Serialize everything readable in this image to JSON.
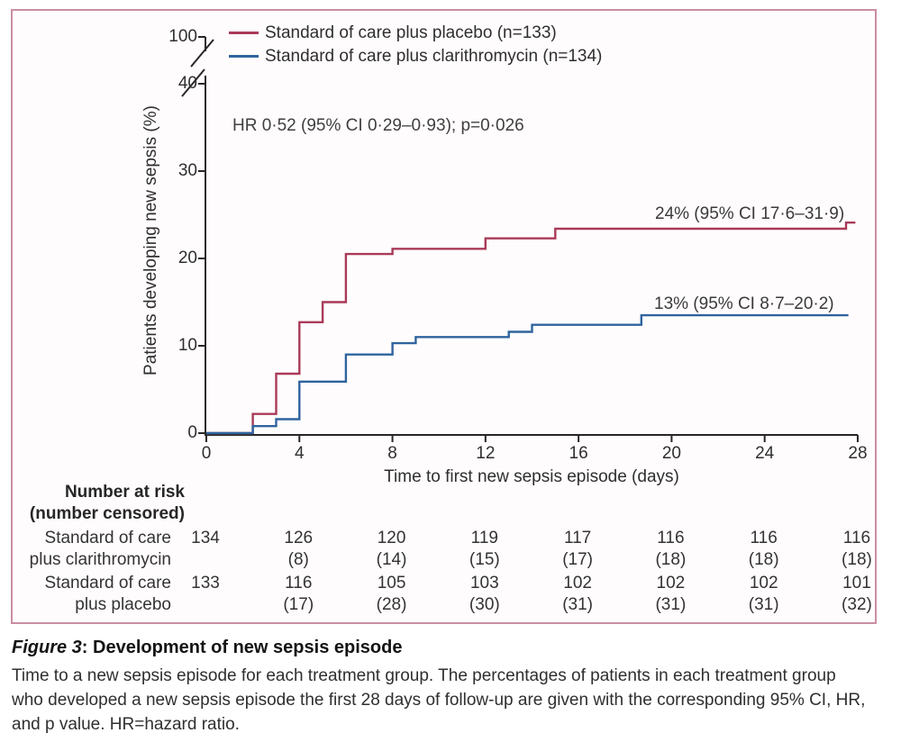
{
  "figure": {
    "legend": [
      {
        "label": "Standard of care plus placebo (n=133)",
        "color": "#a93a58"
      },
      {
        "label": "Standard of care plus clarithromycin (n=134)",
        "color": "#2f649e"
      }
    ],
    "hr_annotation": "HR 0·52 (95% CI 0·29–0·93); p=0·026"
  },
  "chart_data": {
    "type": "line",
    "subtype": "kaplan-meier-cumulative-incidence-step",
    "title": "",
    "xlabel": "Time to first new sepsis episode (days)",
    "ylabel": "Patients developing new sepsis (%)",
    "xlim": [
      0,
      28
    ],
    "ylim": [
      0,
      40
    ],
    "y_axis_break_top_value": 100,
    "x_ticks": [
      0,
      4,
      8,
      12,
      16,
      20,
      24,
      28
    ],
    "y_ticks": [
      0,
      10,
      20,
      30,
      40,
      100
    ],
    "grid": false,
    "legend_position": "top-left",
    "series": [
      {
        "name": "Standard of care plus placebo (n=133)",
        "color": "#a93a58",
        "final_estimate": 24,
        "final_label": "24% (95% CI 17·6–31·9)",
        "points": [
          [
            0,
            0
          ],
          [
            2,
            0
          ],
          [
            2,
            2.2
          ],
          [
            3,
            2.2
          ],
          [
            3,
            6.8
          ],
          [
            4,
            6.8
          ],
          [
            4,
            12.7
          ],
          [
            5,
            12.7
          ],
          [
            5,
            15
          ],
          [
            6,
            15
          ],
          [
            6,
            20.5
          ],
          [
            8,
            20.5
          ],
          [
            8,
            21.1
          ],
          [
            12,
            21.1
          ],
          [
            12,
            22.3
          ],
          [
            15,
            22.3
          ],
          [
            15,
            23.4
          ],
          [
            27.5,
            23.4
          ],
          [
            27.5,
            24.1
          ],
          [
            27.9,
            24.1
          ]
        ]
      },
      {
        "name": "Standard of care plus clarithromycin (n=134)",
        "color": "#2f649e",
        "final_estimate": 13,
        "final_label": "13% (95% CI 8·7–20·2)",
        "points": [
          [
            0,
            0
          ],
          [
            2,
            0
          ],
          [
            2,
            0.8
          ],
          [
            3,
            0.8
          ],
          [
            3,
            1.6
          ],
          [
            4,
            1.6
          ],
          [
            4,
            5.9
          ],
          [
            6,
            5.9
          ],
          [
            6,
            9
          ],
          [
            8,
            9
          ],
          [
            8,
            10.3
          ],
          [
            9,
            10.3
          ],
          [
            9,
            11
          ],
          [
            13,
            11
          ],
          [
            13,
            11.6
          ],
          [
            14,
            11.6
          ],
          [
            14,
            12.4
          ],
          [
            18.7,
            12.4
          ],
          [
            18.7,
            13.5
          ],
          [
            27.6,
            13.5
          ]
        ]
      }
    ]
  },
  "risk_table": {
    "header_line1": "Number at risk",
    "header_line2": "(number censored)",
    "time_points": [
      0,
      4,
      8,
      12,
      16,
      20,
      24,
      28
    ],
    "rows": [
      {
        "label_line1": "Standard of care",
        "label_line2": "plus clarithromycin",
        "at_risk": [
          "134",
          "126",
          "120",
          "119",
          "117",
          "116",
          "116",
          "116"
        ],
        "censored": [
          "",
          "(8)",
          "(14)",
          "(15)",
          "(17)",
          "(18)",
          "(18)",
          "(18)"
        ]
      },
      {
        "label_line1": "Standard of care",
        "label_line2": "plus placebo",
        "at_risk": [
          "133",
          "116",
          "105",
          "103",
          "102",
          "102",
          "102",
          "101"
        ],
        "censored": [
          "",
          "(17)",
          "(28)",
          "(30)",
          "(31)",
          "(31)",
          "(31)",
          "(32)"
        ]
      }
    ]
  },
  "caption": {
    "title_prefix": "Figure 3",
    "title_separator": ": ",
    "title_rest": "Development of new sepsis episode",
    "body": "Time to a new sepsis episode for each treatment group. The percentages of patients in each treatment group who developed a new sepsis episode the first 28 days of follow-up are given with the corresponding 95% CI, HR, and p value. HR=hazard ratio."
  },
  "colors": {
    "axis": "#2a2627",
    "frame_border": "#ca8ea3",
    "panel_background": "#fffcfd",
    "placebo_line": "#a93a58",
    "clarithromycin_line": "#2f649e"
  }
}
